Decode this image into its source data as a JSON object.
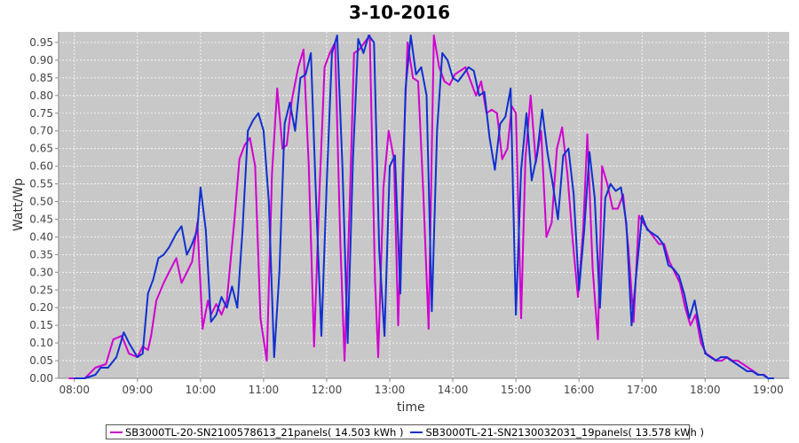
{
  "chart_data": {
    "type": "line",
    "title": "3-10-2016",
    "xlabel": "time",
    "ylabel": "Watt/Wp",
    "x_ticks": [
      "08:00",
      "09:00",
      "10:00",
      "11:00",
      "12:00",
      "13:00",
      "14:00",
      "15:00",
      "16:00",
      "17:00",
      "18:00",
      "19:00"
    ],
    "y_ticks": [
      "0.00",
      "0.05",
      "0.10",
      "0.15",
      "0.20",
      "0.25",
      "0.30",
      "0.35",
      "0.40",
      "0.45",
      "0.50",
      "0.55",
      "0.60",
      "0.65",
      "0.70",
      "0.75",
      "0.80",
      "0.85",
      "0.90",
      "0.95"
    ],
    "ylim": [
      0,
      0.98
    ],
    "xlim": [
      "07:45",
      "19:20"
    ],
    "grid": true,
    "plot_background": "#c8c8c8",
    "legend_position": "bottom",
    "series": [
      {
        "name": "SB3000TL-20-SN2100578613_21panels( 14.503 kWh )",
        "color": "#d000d0",
        "points": [
          [
            "07:55",
            0.0
          ],
          [
            "08:00",
            0.0
          ],
          [
            "08:10",
            0.0
          ],
          [
            "08:20",
            0.03
          ],
          [
            "08:30",
            0.04
          ],
          [
            "08:37",
            0.11
          ],
          [
            "08:45",
            0.12
          ],
          [
            "08:52",
            0.07
          ],
          [
            "09:00",
            0.06
          ],
          [
            "09:05",
            0.09
          ],
          [
            "09:10",
            0.08
          ],
          [
            "09:13",
            0.12
          ],
          [
            "09:18",
            0.22
          ],
          [
            "09:25",
            0.27
          ],
          [
            "09:30",
            0.3
          ],
          [
            "09:37",
            0.34
          ],
          [
            "09:42",
            0.27
          ],
          [
            "09:47",
            0.3
          ],
          [
            "09:52",
            0.33
          ],
          [
            "09:57",
            0.44
          ],
          [
            "10:02",
            0.14
          ],
          [
            "10:07",
            0.22
          ],
          [
            "10:10",
            0.18
          ],
          [
            "10:15",
            0.21
          ],
          [
            "10:20",
            0.18
          ],
          [
            "10:25",
            0.22
          ],
          [
            "10:32",
            0.44
          ],
          [
            "10:37",
            0.62
          ],
          [
            "10:42",
            0.66
          ],
          [
            "10:47",
            0.68
          ],
          [
            "10:52",
            0.6
          ],
          [
            "10:57",
            0.17
          ],
          [
            "11:03",
            0.05
          ],
          [
            "11:08",
            0.58
          ],
          [
            "11:13",
            0.82
          ],
          [
            "11:18",
            0.65
          ],
          [
            "11:22",
            0.66
          ],
          [
            "11:27",
            0.79
          ],
          [
            "11:33",
            0.88
          ],
          [
            "11:38",
            0.93
          ],
          [
            "11:43",
            0.6
          ],
          [
            "11:48",
            0.09
          ],
          [
            "11:53",
            0.52
          ],
          [
            "11:58",
            0.88
          ],
          [
            "12:03",
            0.92
          ],
          [
            "12:08",
            0.95
          ],
          [
            "12:13",
            0.38
          ],
          [
            "12:17",
            0.05
          ],
          [
            "12:22",
            0.5
          ],
          [
            "12:26",
            0.92
          ],
          [
            "12:31",
            0.93
          ],
          [
            "12:36",
            0.95
          ],
          [
            "12:41",
            0.97
          ],
          [
            "12:46",
            0.28
          ],
          [
            "12:49",
            0.06
          ],
          [
            "12:54",
            0.54
          ],
          [
            "12:59",
            0.7
          ],
          [
            "13:04",
            0.62
          ],
          [
            "13:08",
            0.15
          ],
          [
            "13:12",
            0.55
          ],
          [
            "13:17",
            0.95
          ],
          [
            "13:22",
            0.85
          ],
          [
            "13:27",
            0.84
          ],
          [
            "13:32",
            0.52
          ],
          [
            "13:37",
            0.14
          ],
          [
            "13:42",
            0.97
          ],
          [
            "13:47",
            0.88
          ],
          [
            "13:52",
            0.84
          ],
          [
            "13:57",
            0.83
          ],
          [
            "14:02",
            0.86
          ],
          [
            "14:07",
            0.87
          ],
          [
            "14:12",
            0.88
          ],
          [
            "14:17",
            0.84
          ],
          [
            "14:22",
            0.8
          ],
          [
            "14:27",
            0.84
          ],
          [
            "14:32",
            0.75
          ],
          [
            "14:37",
            0.76
          ],
          [
            "14:42",
            0.75
          ],
          [
            "14:47",
            0.62
          ],
          [
            "14:52",
            0.65
          ],
          [
            "14:56",
            0.77
          ],
          [
            "15:00",
            0.75
          ],
          [
            "15:05",
            0.17
          ],
          [
            "15:09",
            0.62
          ],
          [
            "15:14",
            0.8
          ],
          [
            "15:19",
            0.61
          ],
          [
            "15:24",
            0.7
          ],
          [
            "15:29",
            0.4
          ],
          [
            "15:34",
            0.44
          ],
          [
            "15:39",
            0.65
          ],
          [
            "15:44",
            0.71
          ],
          [
            "15:49",
            0.58
          ],
          [
            "15:54",
            0.39
          ],
          [
            "15:59",
            0.23
          ],
          [
            "16:04",
            0.42
          ],
          [
            "16:08",
            0.69
          ],
          [
            "16:13",
            0.31
          ],
          [
            "16:18",
            0.11
          ],
          [
            "16:22",
            0.6
          ],
          [
            "16:27",
            0.55
          ],
          [
            "16:32",
            0.48
          ],
          [
            "16:37",
            0.48
          ],
          [
            "16:42",
            0.52
          ],
          [
            "16:47",
            0.37
          ],
          [
            "16:52",
            0.16
          ],
          [
            "16:57",
            0.46
          ],
          [
            "17:01",
            0.44
          ],
          [
            "17:06",
            0.42
          ],
          [
            "17:11",
            0.4
          ],
          [
            "17:16",
            0.38
          ],
          [
            "17:21",
            0.38
          ],
          [
            "17:26",
            0.33
          ],
          [
            "17:31",
            0.3
          ],
          [
            "17:36",
            0.27
          ],
          [
            "17:41",
            0.2
          ],
          [
            "17:46",
            0.15
          ],
          [
            "17:51",
            0.18
          ],
          [
            "17:56",
            0.1
          ],
          [
            "18:01",
            0.07
          ],
          [
            "18:06",
            0.06
          ],
          [
            "18:11",
            0.05
          ],
          [
            "18:16",
            0.05
          ],
          [
            "18:21",
            0.06
          ],
          [
            "18:26",
            0.05
          ],
          [
            "18:31",
            0.05
          ],
          [
            "18:36",
            0.04
          ],
          [
            "18:41",
            0.03
          ],
          [
            "18:46",
            0.02
          ],
          [
            "18:51",
            0.01
          ],
          [
            "18:56",
            0.01
          ],
          [
            "19:00",
            0.0
          ],
          [
            "19:05",
            0.0
          ]
        ]
      },
      {
        "name": "SB3000TL-21-SN2130032031_19panels( 13.578 kWh )",
        "color": "#1030d0",
        "points": [
          [
            "08:00",
            0.0
          ],
          [
            "08:10",
            0.0
          ],
          [
            "08:20",
            0.01
          ],
          [
            "08:25",
            0.03
          ],
          [
            "08:32",
            0.03
          ],
          [
            "08:40",
            0.06
          ],
          [
            "08:47",
            0.13
          ],
          [
            "08:52",
            0.1
          ],
          [
            "09:00",
            0.06
          ],
          [
            "09:05",
            0.07
          ],
          [
            "09:10",
            0.24
          ],
          [
            "09:15",
            0.28
          ],
          [
            "09:20",
            0.34
          ],
          [
            "09:25",
            0.35
          ],
          [
            "09:30",
            0.37
          ],
          [
            "09:37",
            0.41
          ],
          [
            "09:42",
            0.43
          ],
          [
            "09:47",
            0.35
          ],
          [
            "09:52",
            0.38
          ],
          [
            "09:57",
            0.42
          ],
          [
            "10:00",
            0.54
          ],
          [
            "10:05",
            0.42
          ],
          [
            "10:10",
            0.16
          ],
          [
            "10:15",
            0.18
          ],
          [
            "10:20",
            0.23
          ],
          [
            "10:25",
            0.2
          ],
          [
            "10:30",
            0.26
          ],
          [
            "10:35",
            0.2
          ],
          [
            "10:40",
            0.42
          ],
          [
            "10:45",
            0.7
          ],
          [
            "10:50",
            0.73
          ],
          [
            "10:55",
            0.75
          ],
          [
            "11:00",
            0.7
          ],
          [
            "11:05",
            0.5
          ],
          [
            "11:10",
            0.06
          ],
          [
            "11:15",
            0.3
          ],
          [
            "11:20",
            0.72
          ],
          [
            "11:25",
            0.78
          ],
          [
            "11:30",
            0.7
          ],
          [
            "11:35",
            0.85
          ],
          [
            "11:40",
            0.86
          ],
          [
            "11:45",
            0.92
          ],
          [
            "11:50",
            0.5
          ],
          [
            "11:55",
            0.12
          ],
          [
            "12:00",
            0.55
          ],
          [
            "12:05",
            0.92
          ],
          [
            "12:10",
            0.97
          ],
          [
            "12:15",
            0.6
          ],
          [
            "12:20",
            0.1
          ],
          [
            "12:25",
            0.62
          ],
          [
            "12:30",
            0.96
          ],
          [
            "12:35",
            0.92
          ],
          [
            "12:40",
            0.97
          ],
          [
            "12:45",
            0.95
          ],
          [
            "12:50",
            0.36
          ],
          [
            "12:55",
            0.12
          ],
          [
            "13:00",
            0.6
          ],
          [
            "13:05",
            0.63
          ],
          [
            "13:10",
            0.24
          ],
          [
            "13:15",
            0.82
          ],
          [
            "13:20",
            0.97
          ],
          [
            "13:25",
            0.86
          ],
          [
            "13:30",
            0.88
          ],
          [
            "13:35",
            0.8
          ],
          [
            "13:40",
            0.19
          ],
          [
            "13:45",
            0.7
          ],
          [
            "13:50",
            0.92
          ],
          [
            "13:55",
            0.9
          ],
          [
            "14:00",
            0.85
          ],
          [
            "14:05",
            0.84
          ],
          [
            "14:10",
            0.86
          ],
          [
            "14:15",
            0.88
          ],
          [
            "14:20",
            0.87
          ],
          [
            "14:25",
            0.8
          ],
          [
            "14:30",
            0.81
          ],
          [
            "14:35",
            0.68
          ],
          [
            "14:40",
            0.59
          ],
          [
            "14:45",
            0.72
          ],
          [
            "14:50",
            0.74
          ],
          [
            "14:55",
            0.82
          ],
          [
            "15:00",
            0.18
          ],
          [
            "15:05",
            0.59
          ],
          [
            "15:10",
            0.75
          ],
          [
            "15:15",
            0.56
          ],
          [
            "15:20",
            0.63
          ],
          [
            "15:25",
            0.76
          ],
          [
            "15:30",
            0.64
          ],
          [
            "15:35",
            0.55
          ],
          [
            "15:40",
            0.45
          ],
          [
            "15:45",
            0.63
          ],
          [
            "15:50",
            0.65
          ],
          [
            "15:55",
            0.52
          ],
          [
            "16:00",
            0.25
          ],
          [
            "16:05",
            0.42
          ],
          [
            "16:10",
            0.64
          ],
          [
            "16:15",
            0.51
          ],
          [
            "16:20",
            0.2
          ],
          [
            "16:25",
            0.51
          ],
          [
            "16:30",
            0.55
          ],
          [
            "16:35",
            0.53
          ],
          [
            "16:40",
            0.54
          ],
          [
            "16:45",
            0.44
          ],
          [
            "16:50",
            0.15
          ],
          [
            "16:55",
            0.31
          ],
          [
            "17:00",
            0.46
          ],
          [
            "17:05",
            0.42
          ],
          [
            "17:10",
            0.41
          ],
          [
            "17:15",
            0.4
          ],
          [
            "17:20",
            0.38
          ],
          [
            "17:25",
            0.32
          ],
          [
            "17:30",
            0.31
          ],
          [
            "17:35",
            0.29
          ],
          [
            "17:40",
            0.24
          ],
          [
            "17:45",
            0.17
          ],
          [
            "17:50",
            0.22
          ],
          [
            "17:55",
            0.14
          ],
          [
            "18:00",
            0.07
          ],
          [
            "18:05",
            0.06
          ],
          [
            "18:10",
            0.05
          ],
          [
            "18:15",
            0.06
          ],
          [
            "18:20",
            0.06
          ],
          [
            "18:25",
            0.05
          ],
          [
            "18:30",
            0.04
          ],
          [
            "18:35",
            0.03
          ],
          [
            "18:40",
            0.02
          ],
          [
            "18:45",
            0.02
          ],
          [
            "18:50",
            0.01
          ],
          [
            "18:55",
            0.01
          ],
          [
            "19:00",
            0.0
          ],
          [
            "19:05",
            0.0
          ]
        ]
      }
    ]
  }
}
